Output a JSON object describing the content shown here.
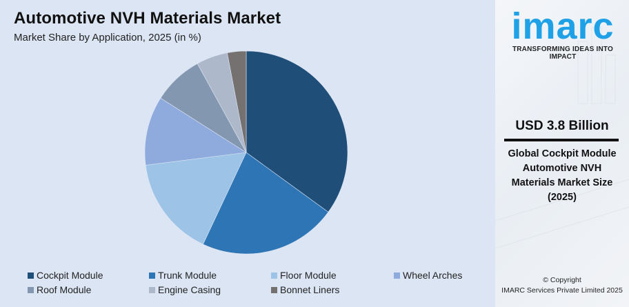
{
  "header": {
    "title": "Automotive NVH Materials Market",
    "subtitle": "Market Share by Application, 2025 (in %)"
  },
  "sidebar": {
    "logo": "imarc",
    "tagline": "TRANSFORMING IDEAS INTO IMPACT",
    "value": "USD 3.8 Billion",
    "description_lines": [
      "Global Cockpit Module",
      "Automotive NVH",
      "Materials Market Size",
      "(2025)"
    ],
    "copyright_line1": "© Copyright",
    "copyright_line2": "IMARC Services Private Limited 2025"
  },
  "chart_data": {
    "type": "pie",
    "title": "Automotive NVH Materials Market",
    "subtitle": "Market Share by Application, 2025 (in %)",
    "categories": [
      "Cockpit Module",
      "Trunk Module",
      "Floor Module",
      "Wheel Arches",
      "Roof Module",
      "Engine Casing",
      "Bonnet Liners"
    ],
    "values": [
      35,
      22,
      16,
      11,
      8,
      5,
      3
    ],
    "colors": [
      "#1f4e79",
      "#2e75b6",
      "#9dc3e6",
      "#8faadc",
      "#8497b0",
      "#adb9ca",
      "#767171"
    ],
    "start_angle": "12 o'clock, clockwise",
    "legend_position": "bottom"
  }
}
